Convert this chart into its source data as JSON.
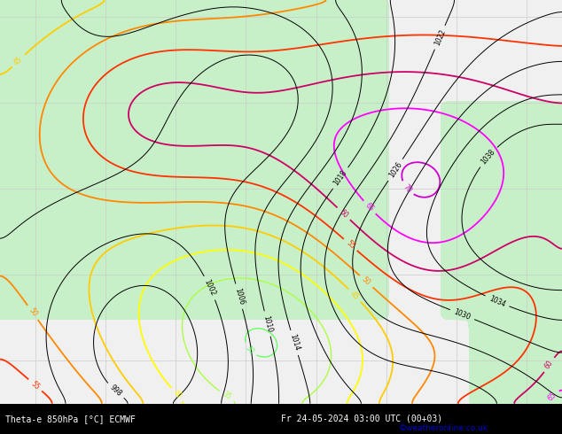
{
  "bottom_text": "Theta-e 850hPa [°C] ECMWF",
  "date_text": "Fr 24-05-2024 03:00 UTC (00+03)",
  "credit": "©weatheronline.co.uk",
  "figsize": [
    6.34,
    4.9
  ],
  "dpi": 100,
  "map_bg": "#f0f0f0",
  "land_color": "#c8f0c8",
  "grid_color": "#cccccc",
  "bottom_bar_color": "#000000",
  "bottom_text_color": "#ffffff",
  "credit_color": "#0000cc",
  "xlim": [
    -75,
    5
  ],
  "ylim": [
    25,
    72
  ],
  "seed": 12345
}
